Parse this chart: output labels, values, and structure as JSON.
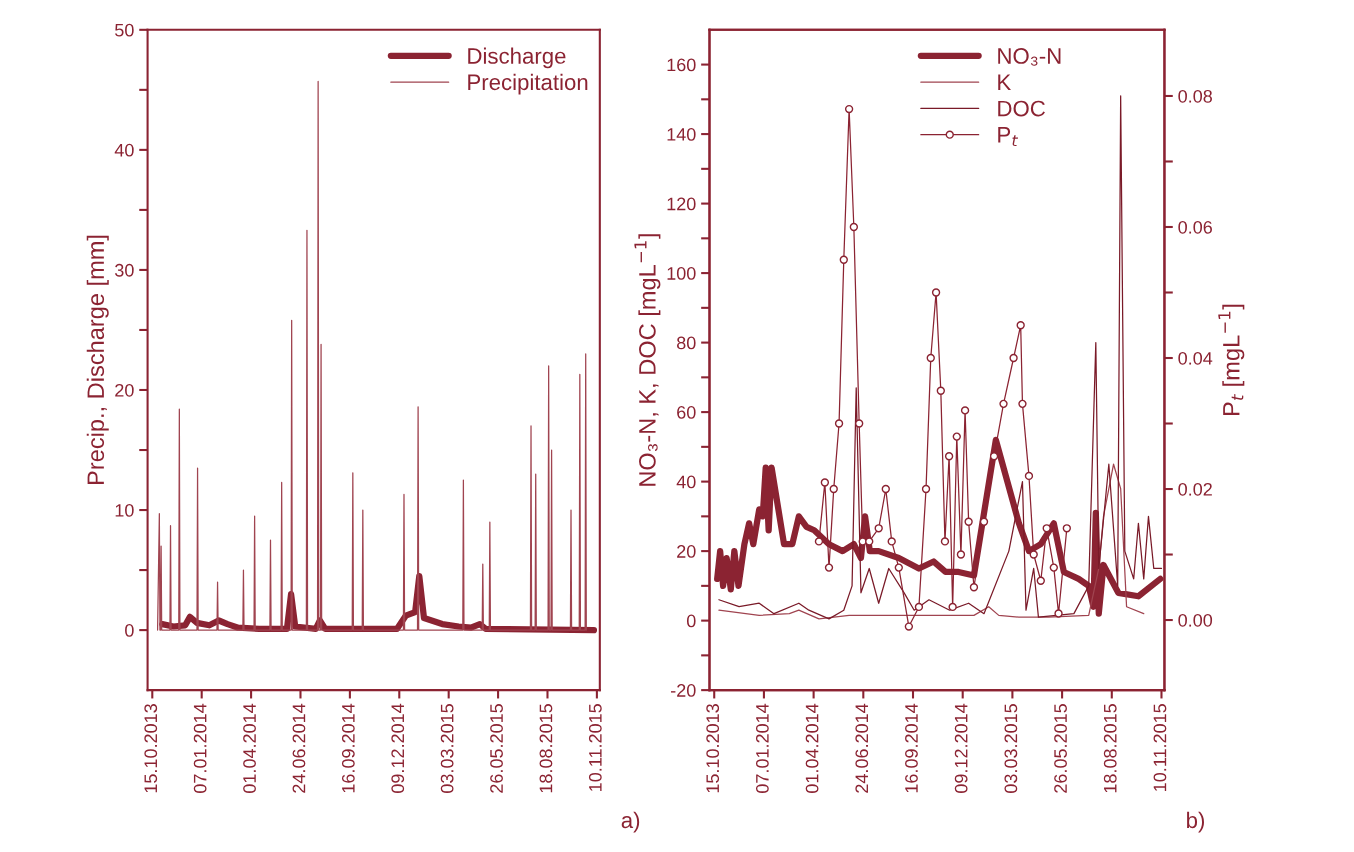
{
  "chart_data": [
    {
      "type": "line",
      "ylabel": "Precip., Discharge [mm]",
      "xlim": [
        "2013-10-07",
        "2015-11-15"
      ],
      "xticks": [
        {
          "value": "2013-10-15",
          "label": "15.10.2013"
        },
        {
          "value": "2014-01-07",
          "label": "07.01.2014"
        },
        {
          "value": "2014-04-01",
          "label": "01.04.2014"
        },
        {
          "value": "2014-06-24",
          "label": "24.06.2014"
        },
        {
          "value": "2014-09-16",
          "label": "16.09.2014"
        },
        {
          "value": "2014-12-09",
          "label": "09.12.2014"
        },
        {
          "value": "2015-03-03",
          "label": "03.03.2015"
        },
        {
          "value": "2015-05-26",
          "label": "26.05.2015"
        },
        {
          "value": "2015-08-18",
          "label": "18.08.2015"
        },
        {
          "value": "2015-11-10",
          "label": "10.11.2015"
        }
      ],
      "ylim": [
        -5,
        50
      ],
      "yticks": [
        0,
        {
          "value": 5,
          "label": null
        },
        10,
        {
          "value": 15,
          "label": null
        },
        20,
        {
          "value": 25,
          "label": null
        },
        30,
        {
          "value": 35,
          "label": null
        },
        40,
        {
          "value": 45,
          "label": null
        },
        50
      ],
      "legend": "top right",
      "annotations": [
        "a)"
      ],
      "series": [
        {
          "name": "Discharge",
          "color": "#8b2332",
          "x": [
            "2013-11-01",
            "2013-11-20",
            "2013-12-10",
            "2013-12-18",
            "2013-12-30",
            "2014-01-20",
            "2014-02-05",
            "2014-02-20",
            "2014-03-10",
            "2014-04-15",
            "2014-06-01",
            "2014-06-08",
            "2014-06-15",
            "2014-07-20",
            "2014-07-27",
            "2014-08-05",
            "2014-12-05",
            "2014-12-20",
            "2015-01-05",
            "2015-01-12",
            "2015-01-20",
            "2015-02-20",
            "2015-03-20",
            "2015-04-10",
            "2015-04-25",
            "2015-05-05",
            "2015-11-05"
          ],
          "values": [
            0.5,
            0.3,
            0.4,
            1.1,
            0.6,
            0.4,
            0.8,
            0.5,
            0.2,
            0.1,
            0.1,
            3.0,
            0.3,
            0.1,
            0.8,
            0.1,
            0.1,
            1.2,
            1.5,
            4.5,
            1.0,
            0.5,
            0.3,
            0.2,
            0.5,
            0.1,
            0.0
          ]
        },
        {
          "name": "Precipitation",
          "color": "#a04450",
          "x": [
            "2013-10-24",
            "2013-10-27",
            "2013-10-28",
            "2013-10-29",
            "2013-10-30",
            "2013-10-31",
            "2013-11-14",
            "2013-11-15",
            "2013-11-16",
            "2013-11-29",
            "2013-11-30",
            "2013-12-01",
            "2013-12-30",
            "2013-12-31",
            "2014-01-01",
            "2014-02-02",
            "2014-02-03",
            "2014-02-04",
            "2014-03-18",
            "2014-03-19",
            "2014-03-20",
            "2014-04-06",
            "2014-04-07",
            "2014-04-08",
            "2014-05-03",
            "2014-05-04",
            "2014-05-05",
            "2014-05-22",
            "2014-05-23",
            "2014-05-24",
            "2014-06-08",
            "2014-06-09",
            "2014-06-10",
            "2014-07-04",
            "2014-07-05",
            "2014-07-06",
            "2014-07-23",
            "2014-07-24",
            "2014-07-25",
            "2014-07-28",
            "2014-07-29",
            "2014-07-30",
            "2014-09-20",
            "2014-09-21",
            "2014-09-22",
            "2014-10-07",
            "2014-10-08",
            "2014-10-09",
            "2014-12-16",
            "2014-12-17",
            "2014-12-18",
            "2015-01-09",
            "2015-01-10",
            "2015-01-11",
            "2015-03-27",
            "2015-03-28",
            "2015-03-29",
            "2015-04-29",
            "2015-04-30",
            "2015-05-01",
            "2015-05-11",
            "2015-05-12",
            "2015-05-13",
            "2015-07-20",
            "2015-07-21",
            "2015-07-22",
            "2015-07-28",
            "2015-07-29",
            "2015-07-30",
            "2015-08-19",
            "2015-08-20",
            "2015-08-21",
            "2015-08-24",
            "2015-08-25",
            "2015-08-26",
            "2015-09-26",
            "2015-09-27",
            "2015-09-28",
            "2015-10-11",
            "2015-10-12",
            "2015-10-13",
            "2015-10-21",
            "2015-10-22",
            "2015-10-23"
          ],
          "values": [
            0,
            9.7,
            0,
            0,
            7.0,
            0,
            0,
            8.7,
            0,
            0,
            18.4,
            0,
            0,
            13.5,
            0,
            0,
            4.0,
            0,
            0,
            5.0,
            0,
            0,
            9.5,
            0,
            0,
            7.5,
            0,
            0,
            12.3,
            0,
            0,
            25.8,
            0,
            0,
            33.3,
            0,
            0,
            45.7,
            0,
            0,
            23.8,
            0,
            0,
            13.1,
            0,
            0,
            10.0,
            0,
            0,
            11.3,
            0,
            0,
            18.6,
            0,
            0,
            12.5,
            0,
            0,
            5.5,
            0,
            0,
            9.0,
            0,
            0,
            17.0,
            0,
            0,
            13.0,
            0,
            0,
            22.0,
            0,
            0,
            15.0,
            0,
            0,
            10.0,
            0,
            0,
            21.3,
            0,
            0,
            23.0,
            0
          ]
        }
      ]
    },
    {
      "type": "line",
      "ylabel": "NO₃-N, K, DOC [mgL$^{−1}$]",
      "y2label": "P$_{t}$ [mgL$^{−1}$]",
      "xlim": [
        "2013-10-07",
        "2015-11-15"
      ],
      "xticks": [
        {
          "value": "2013-10-15",
          "label": "15.10.2013"
        },
        {
          "value": "2014-01-07",
          "label": "07.01.2014"
        },
        {
          "value": "2014-04-01",
          "label": "01.04.2014"
        },
        {
          "value": "2014-06-24",
          "label": "24.06.2014"
        },
        {
          "value": "2014-09-16",
          "label": "16.09.2014"
        },
        {
          "value": "2014-12-09",
          "label": "09.12.2014"
        },
        {
          "value": "2015-03-03",
          "label": "03.03.2015"
        },
        {
          "value": "2015-05-26",
          "label": "26.05.2015"
        },
        {
          "value": "2015-08-18",
          "label": "18.08.2015"
        },
        {
          "value": "2015-11-10",
          "label": "10.11.2015"
        }
      ],
      "ylim": [
        -20,
        170
      ],
      "yticks": [
        -20,
        {
          "value": -10,
          "label": null
        },
        0,
        {
          "value": 10,
          "label": null
        },
        20,
        {
          "value": 30,
          "label": null
        },
        40,
        {
          "value": 50,
          "label": null
        },
        60,
        {
          "value": 70,
          "label": null
        },
        80,
        {
          "value": 90,
          "label": null
        },
        100,
        {
          "value": 110,
          "label": null
        },
        120,
        {
          "value": 130,
          "label": null
        },
        140,
        {
          "value": 150,
          "label": null
        },
        160
      ],
      "y2lim": [
        -0.0107,
        0.0901
      ],
      "y2ticks": [
        {
          "value": 0,
          "label": "0.00"
        },
        {
          "value": 0.01,
          "label": null
        },
        {
          "value": 0.02,
          "label": "0.02"
        },
        {
          "value": 0.03,
          "label": null
        },
        {
          "value": 0.04,
          "label": "0.04"
        },
        {
          "value": 0.05,
          "label": null
        },
        {
          "value": 0.06,
          "label": "0.06"
        },
        {
          "value": 0.07,
          "label": null
        },
        {
          "value": 0.08,
          "label": "0.08"
        }
      ],
      "legend": "top",
      "annotations": [
        "b)"
      ],
      "series": [
        {
          "name": "NO₃-N",
          "color": "#8b2332",
          "x": [
            "2013-10-20",
            "2013-10-25",
            "2013-10-30",
            "2013-11-05",
            "2013-11-12",
            "2013-11-18",
            "2013-11-25",
            "2013-12-05",
            "2013-12-13",
            "2013-12-20",
            "2013-12-30",
            "2014-01-05",
            "2014-01-10",
            "2014-01-15",
            "2014-01-20",
            "2014-02-10",
            "2014-02-24",
            "2014-03-07",
            "2014-03-20",
            "2014-04-02",
            "2014-04-27",
            "2014-05-20",
            "2014-06-08",
            "2014-06-20",
            "2014-06-27",
            "2014-07-05",
            "2014-07-20",
            "2014-08-23",
            "2014-09-26",
            "2014-10-21",
            "2014-11-10",
            "2014-12-02",
            "2014-12-28",
            "2015-02-03",
            "2015-03-14",
            "2015-03-31",
            "2015-04-20",
            "2015-05-12",
            "2015-05-29",
            "2015-06-23",
            "2015-07-10",
            "2015-07-18",
            "2015-07-22",
            "2015-07-27",
            "2015-08-04",
            "2015-08-29",
            "2015-10-02",
            "2015-11-08"
          ],
          "values": [
            12,
            20,
            10,
            18,
            9,
            20,
            10,
            22,
            28,
            22,
            32,
            30,
            44,
            26,
            44,
            22,
            22,
            30,
            27,
            26,
            22,
            20,
            22,
            18,
            30,
            20,
            20,
            18,
            15,
            17,
            14,
            14,
            13,
            52,
            28,
            20,
            22,
            28,
            14,
            12,
            10,
            4,
            31,
            2,
            16,
            8,
            7,
            12
          ]
        },
        {
          "name": "K",
          "color": "#a04450",
          "x": [
            "2013-10-23",
            "2013-12-30",
            "2014-02-19",
            "2014-03-07",
            "2014-04-10",
            "2014-05-31",
            "2014-08-23",
            "2014-12-02",
            "2014-12-28",
            "2015-01-22",
            "2015-02-08",
            "2015-03-14",
            "2015-05-03",
            "2015-07-10",
            "2015-07-27",
            "2015-08-04",
            "2015-08-21",
            "2015-09-02",
            "2015-09-12",
            "2015-10-11"
          ],
          "values": [
            3,
            1.5,
            2,
            3,
            0.5,
            1.5,
            1.5,
            1.5,
            1.5,
            4,
            1.5,
            1,
            1,
            1.5,
            15,
            30,
            45,
            38,
            4,
            2
          ]
        },
        {
          "name": "DOC",
          "color": "#7a1a28",
          "x": [
            "2013-10-23",
            "2013-11-26",
            "2013-12-30",
            "2014-01-24",
            "2014-03-07",
            "2014-03-24",
            "2014-04-27",
            "2014-05-22",
            "2014-06-05",
            "2014-06-12",
            "2014-06-20",
            "2014-07-04",
            "2014-07-20",
            "2014-08-06",
            "2014-09-01",
            "2014-09-18",
            "2014-10-13",
            "2014-11-17",
            "2014-12-19",
            "2015-01-14",
            "2015-02-25",
            "2015-03-20",
            "2015-03-26",
            "2015-04-08",
            "2015-04-16",
            "2015-06-15",
            "2015-07-10",
            "2015-07-22",
            "2015-07-27",
            "2015-08-13",
            "2015-08-28",
            "2015-09-02",
            "2015-09-09",
            "2015-09-24",
            "2015-10-02",
            "2015-10-11",
            "2015-10-19",
            "2015-10-28",
            "2015-11-10"
          ],
          "values": [
            6,
            4,
            5,
            2,
            5,
            3,
            0.5,
            3,
            10,
            67,
            8,
            15,
            5,
            15,
            8,
            3,
            6,
            3,
            5,
            2,
            20,
            40,
            3,
            15,
            1,
            2,
            10,
            80,
            15,
            45,
            10,
            151,
            20,
            12,
            28,
            12,
            30,
            15,
            15
          ]
        },
        {
          "name": "P$_{t}$",
          "color": "#8b2332",
          "axis": "y2",
          "marker": "circle",
          "x": [
            "2014-04-10",
            "2014-04-20",
            "2014-04-27",
            "2014-05-05",
            "2014-05-14",
            "2014-05-22",
            "2014-05-31",
            "2014-06-08",
            "2014-06-17",
            "2014-06-23",
            "2014-07-04",
            "2014-07-20",
            "2014-08-01",
            "2014-08-11",
            "2014-08-23",
            "2014-09-09",
            "2014-09-26",
            "2014-10-08",
            "2014-10-16",
            "2014-10-25",
            "2014-11-02",
            "2014-11-09",
            "2014-11-16",
            "2014-11-22",
            "2014-11-29",
            "2014-12-06",
            "2014-12-13",
            "2014-12-19",
            "2014-12-28",
            "2015-01-14",
            "2015-01-31",
            "2015-02-16",
            "2015-03-05",
            "2015-03-17",
            "2015-03-20",
            "2015-03-31",
            "2015-04-08",
            "2015-04-20",
            "2015-04-30",
            "2015-05-12",
            "2015-05-20",
            "2015-06-03"
          ],
          "values": [
            0.012,
            0.021,
            0.008,
            0.02,
            0.03,
            0.055,
            0.078,
            0.06,
            0.03,
            0.012,
            0.012,
            0.014,
            0.02,
            0.012,
            0.008,
            -0.001,
            0.002,
            0.02,
            0.04,
            0.05,
            0.035,
            0.012,
            0.025,
            0.002,
            0.028,
            0.01,
            0.032,
            0.015,
            0.005,
            0.015,
            0.025,
            0.033,
            0.04,
            0.045,
            0.033,
            0.022,
            0.01,
            0.006,
            0.014,
            0.008,
            0.001,
            0.014
          ]
        }
      ]
    }
  ]
}
